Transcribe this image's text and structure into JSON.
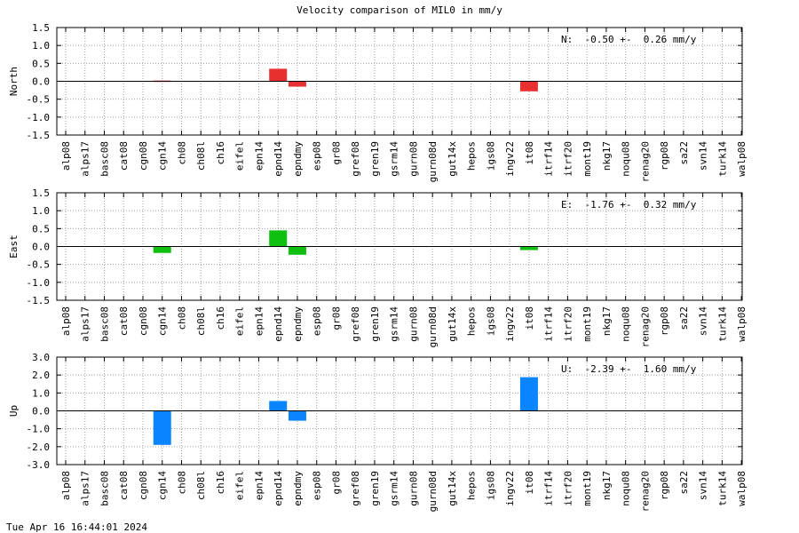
{
  "title": "Velocity comparison of MIL0 in mm/y",
  "timestamp": "Tue Apr 16 16:44:01 2024",
  "chart_data": [
    {
      "type": "bar",
      "ylabel": "North",
      "ylim": [
        -1.5,
        1.5
      ],
      "yticks": [
        "1.5",
        "1.0",
        "0.5",
        "0.0",
        "-0.5",
        "-1.0",
        "-1.5"
      ],
      "ytick_values": [
        1.5,
        1.0,
        0.5,
        0.0,
        -0.5,
        -1.0,
        -1.5
      ],
      "annotation": "N:  -0.50 +-  0.26 mm/y",
      "color": "#e83030",
      "grid": true,
      "categories": [
        "alp08",
        "alps17",
        "basc08",
        "cat08",
        "cgn08",
        "cgn14",
        "ch08",
        "ch08l",
        "ch16",
        "eifel",
        "epn14",
        "epnd14",
        "epndmy",
        "esp08",
        "gr08",
        "gref08",
        "gren19",
        "gsrm14",
        "gurn08",
        "gurn08d",
        "gut14x",
        "hepos",
        "igs08",
        "ingv22",
        "it08",
        "itrf14",
        "itrf20",
        "mont19",
        "nkg17",
        "noqu08",
        "renag20",
        "rgp08",
        "sa22",
        "svn14",
        "turk14",
        "walp08"
      ],
      "values": [
        0,
        0,
        0,
        0,
        0,
        0.02,
        0,
        0,
        0,
        0,
        0,
        0.35,
        -0.15,
        0,
        0,
        0,
        0,
        0,
        0,
        0,
        0,
        0,
        0,
        0,
        -0.28,
        0,
        0,
        0,
        0,
        0,
        0,
        0,
        0,
        0,
        0,
        0
      ]
    },
    {
      "type": "bar",
      "ylabel": "East",
      "ylim": [
        -1.5,
        1.5
      ],
      "yticks": [
        "1.5",
        "1.0",
        "0.5",
        "0.0",
        "-0.5",
        "-1.0",
        "-1.5"
      ],
      "ytick_values": [
        1.5,
        1.0,
        0.5,
        0.0,
        -0.5,
        -1.0,
        -1.5
      ],
      "annotation": "E:  -1.76 +-  0.32 mm/y",
      "color": "#10c010",
      "grid": true,
      "categories": [
        "alp08",
        "alps17",
        "basc08",
        "cat08",
        "cgn08",
        "cgn14",
        "ch08",
        "ch08l",
        "ch16",
        "eifel",
        "epn14",
        "epnd14",
        "epndmy",
        "esp08",
        "gr08",
        "gref08",
        "gren19",
        "gsrm14",
        "gurn08",
        "gurn08d",
        "gut14x",
        "hepos",
        "igs08",
        "ingv22",
        "it08",
        "itrf14",
        "itrf20",
        "mont19",
        "nkg17",
        "noqu08",
        "renag20",
        "rgp08",
        "sa22",
        "svn14",
        "turk14",
        "walp08"
      ],
      "values": [
        0,
        0,
        0,
        0,
        0,
        -0.18,
        0,
        0,
        0,
        0,
        0,
        0.45,
        -0.23,
        0,
        0,
        0,
        0,
        0,
        0,
        0,
        0,
        0,
        0,
        0,
        -0.1,
        0,
        0,
        0,
        0,
        0,
        0,
        0,
        0,
        0,
        0,
        0
      ]
    },
    {
      "type": "bar",
      "ylabel": "Up",
      "ylim": [
        -3.0,
        3.0
      ],
      "yticks": [
        "3.0",
        "2.0",
        "1.0",
        "0.0",
        "-1.0",
        "-2.0",
        "-3.0"
      ],
      "ytick_values": [
        3.0,
        2.0,
        1.0,
        0.0,
        -1.0,
        -2.0,
        -3.0
      ],
      "annotation": "U:  -2.39 +-  1.60 mm/y",
      "color": "#0a84ff",
      "grid": true,
      "categories": [
        "alp08",
        "alps17",
        "basc08",
        "cat08",
        "cgn08",
        "cgn14",
        "ch08",
        "ch08l",
        "ch16",
        "eifel",
        "epn14",
        "epnd14",
        "epndmy",
        "esp08",
        "gr08",
        "gref08",
        "gren19",
        "gsrm14",
        "gurn08",
        "gurn08d",
        "gut14x",
        "hepos",
        "igs08",
        "ingv22",
        "it08",
        "itrf14",
        "itrf20",
        "mont19",
        "nkg17",
        "noqu08",
        "renag20",
        "rgp08",
        "sa22",
        "svn14",
        "turk14",
        "walp08"
      ],
      "values": [
        0,
        0,
        0,
        0,
        0,
        -1.9,
        0,
        0,
        0,
        0,
        0,
        0.55,
        -0.55,
        0,
        0,
        0,
        0,
        0,
        0,
        0,
        0,
        0,
        0,
        0,
        1.88,
        0,
        0,
        0,
        0,
        0,
        0,
        0,
        0,
        0,
        0,
        0
      ]
    }
  ]
}
